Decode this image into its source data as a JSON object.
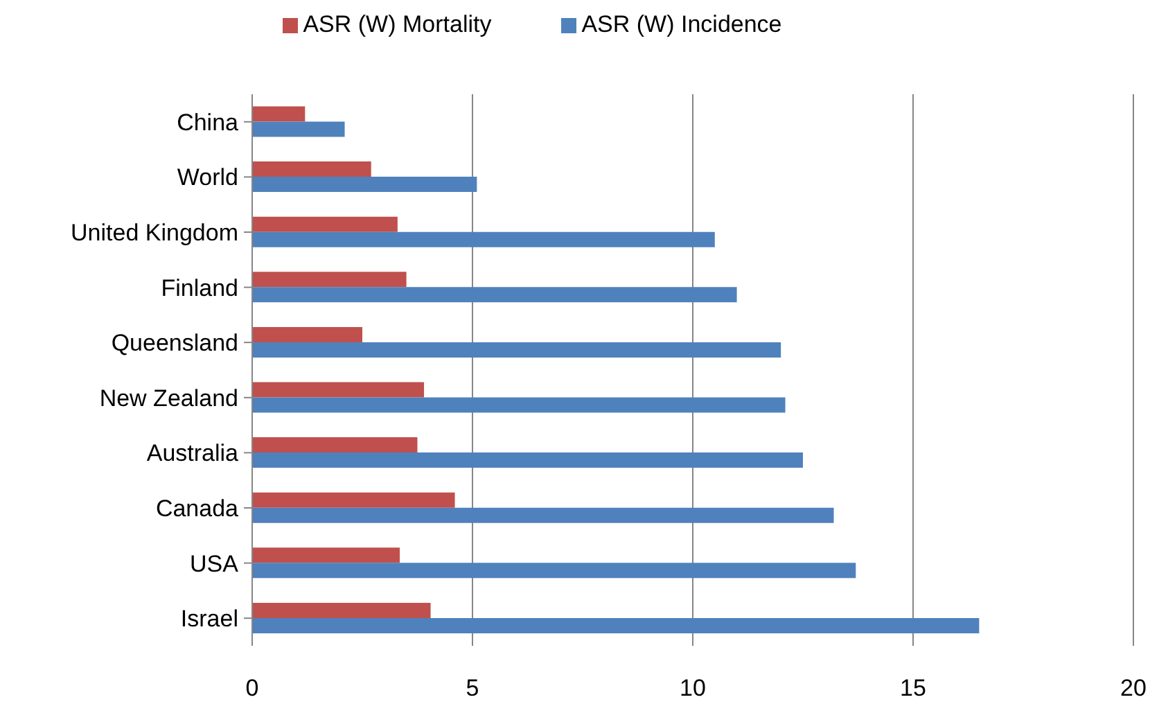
{
  "chart_data": {
    "type": "bar",
    "orientation": "horizontal",
    "categories": [
      "China",
      "World",
      "United Kingdom",
      "Finland",
      "Queensland",
      "New Zealand",
      "Australia",
      "Canada",
      "USA",
      "Israel"
    ],
    "series": [
      {
        "name": "ASR (W) Mortality",
        "color": "#c0504d",
        "values": [
          1.2,
          2.7,
          3.3,
          3.5,
          2.5,
          3.9,
          3.75,
          4.6,
          3.35,
          4.05
        ]
      },
      {
        "name": "ASR (W) Incidence",
        "color": "#4f81bd",
        "values": [
          2.1,
          5.1,
          10.5,
          11.0,
          12.0,
          12.1,
          12.5,
          13.2,
          13.7,
          16.5
        ]
      }
    ],
    "xlim": [
      0,
      20
    ],
    "xticks": [
      0,
      5,
      10,
      15,
      20
    ],
    "grid": "x",
    "legend": "top"
  }
}
